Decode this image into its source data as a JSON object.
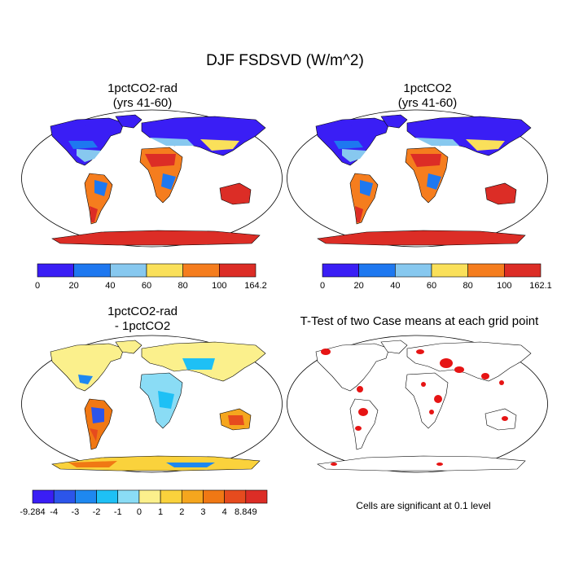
{
  "title": "DJF FSDSVD (W/m^2)",
  "panels": [
    {
      "title": "1pctCO2-rad\n(yrs 41-60)",
      "colorbar": {
        "colors": [
          "#3a1ef5",
          "#1e78f0",
          "#87c8ef",
          "#fae05a",
          "#f57d1e",
          "#dc2d26"
        ],
        "labels": [
          "0",
          "20",
          "40",
          "60",
          "80",
          "100",
          "164.2"
        ]
      }
    },
    {
      "title": "1pctCO2\n(yrs 41-60)",
      "colorbar": {
        "colors": [
          "#3a1ef5",
          "#1e78f0",
          "#87c8ef",
          "#fae05a",
          "#f57d1e",
          "#dc2d26"
        ],
        "labels": [
          "0",
          "20",
          "40",
          "60",
          "80",
          "100",
          "162.1"
        ]
      }
    },
    {
      "title": "1pctCO2-rad\n- 1pctCO2",
      "colorbar": {
        "colors": [
          "#3a1ef5",
          "#2c55ea",
          "#1e88f0",
          "#1ec0f5",
          "#8adcf5",
          "#fbf08c",
          "#fad23c",
          "#f5a61e",
          "#f07814",
          "#e64b1e",
          "#dc2d26"
        ],
        "labels": [
          "-9.284",
          "-4",
          "-3",
          "-2",
          "-1",
          "0",
          "1",
          "2",
          "3",
          "4",
          "8.849"
        ]
      }
    },
    {
      "title": "T-Test of two Case means at each grid point",
      "note": "Cells are significant at 0.1 level",
      "sig_color": "#e61414"
    }
  ]
}
